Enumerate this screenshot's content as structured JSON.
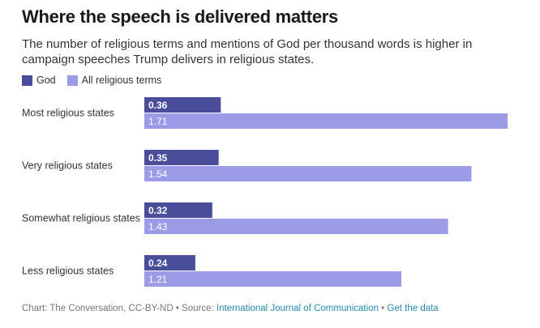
{
  "colors": {
    "god": "#4a4e9a",
    "all": "#9b9be8",
    "label_dark": "#ffffff",
    "label_light": "#ffffff"
  },
  "footer": {
    "credit": "Chart: The Conversation, CC-BY-ND",
    "sep1": " • Source: ",
    "source": "International Journal of Communication",
    "sep2": " • ",
    "get_data": "Get the data"
  },
  "chart_data": {
    "type": "bar",
    "orientation": "horizontal",
    "title": "Where the speech is delivered matters",
    "subtitle": "The number of religious terms and mentions of God per thousand words is higher in campaign speeches Trump delivers in religious states.",
    "categories": [
      "Most religious states",
      "Very religious states",
      "Somewhat religious states",
      "Less religious states"
    ],
    "series": [
      {
        "name": "God",
        "values": [
          0.36,
          0.35,
          0.32,
          0.24
        ]
      },
      {
        "name": "All religious terms",
        "values": [
          1.71,
          1.54,
          1.43,
          1.21
        ]
      }
    ],
    "xlim": [
      0,
      1.71
    ],
    "grid": false,
    "legend": "top-left"
  }
}
